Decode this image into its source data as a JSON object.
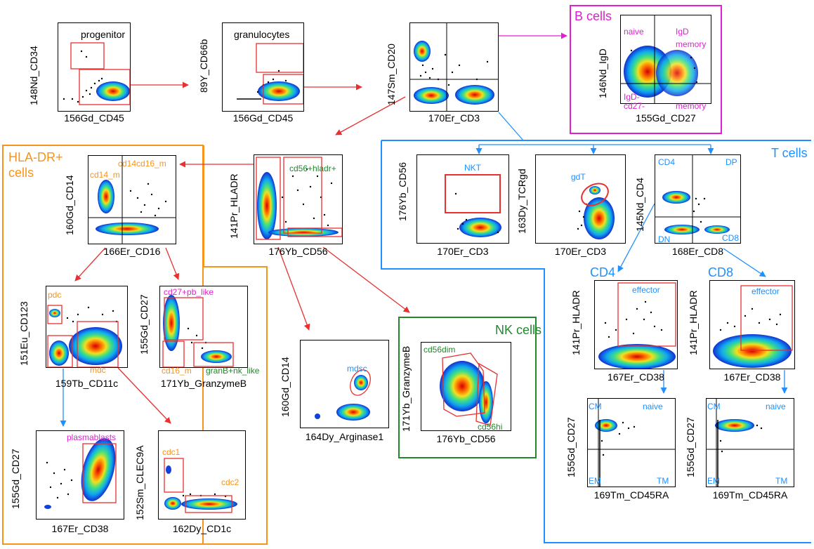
{
  "colors": {
    "orange": "#f7941d",
    "magenta": "#e020d0",
    "blue": "#1e90ff",
    "green": "#22882c",
    "red": "#e83030"
  },
  "groups": {
    "hla": {
      "title_line1": "HLA-DR+",
      "title_line2": "cells"
    },
    "bcells": {
      "title": "B cells"
    },
    "tcells": {
      "title": "T cells"
    },
    "nk": {
      "title": "NK cells"
    }
  },
  "plots": {
    "p1": {
      "y": "148Nd_CD34",
      "x": "156Gd_CD45",
      "title": "progenitor"
    },
    "p2": {
      "y": "89Y_CD66b",
      "x": "156Gd_CD45",
      "title": "granulocytes"
    },
    "p3": {
      "y": "147Sm_CD20",
      "x": "170Er_CD3"
    },
    "p4": {
      "y": "146Nd_IgD",
      "x": "155Gd_CD27",
      "gates": [
        "naive",
        "IgD",
        "memory",
        "IgD-",
        "cd27-",
        "memory"
      ]
    },
    "p5": {
      "y": "141Pr_HLADR",
      "x": "176Yb_CD56",
      "gates": [
        "cd56+hladr+"
      ]
    },
    "p6": {
      "y": "160Gd_CD14",
      "x": "166Er_CD16",
      "gates": [
        "cd14cd16_m",
        "cd14_m"
      ]
    },
    "p7": {
      "y": "176Yb_CD56",
      "x": "170Er_CD3",
      "gates": [
        "NKT"
      ]
    },
    "p8": {
      "y": "163Dy_TCRgd",
      "x": "170Er_CD3",
      "gates": [
        "gdT"
      ]
    },
    "p9": {
      "y": "145Nd_CD4",
      "x": "168Er_CD8",
      "gates": [
        "CD4",
        "DP",
        "DN",
        "CD8"
      ]
    },
    "p10": {
      "y": "151Eu_CD123",
      "x": "159Tb_CD11c",
      "gates": [
        "pdc",
        "mdc"
      ]
    },
    "p11": {
      "y": "155Gd_CD27",
      "x": "171Yb_GranzymeB",
      "gates": [
        "cd27+pb_like",
        "cd16_m",
        "granB+nk_like"
      ]
    },
    "p12": {
      "y": "160Gd_CD14",
      "x": "164Dy_Arginase1",
      "gates": [
        "mdsc"
      ]
    },
    "p13": {
      "y": "171Yb_GranzymeB",
      "x": "176Yb_CD56",
      "gates": [
        "cd56dim",
        "cd56hi"
      ]
    },
    "p14": {
      "y": "141Pr_HLADR",
      "x": "167Er_CD38",
      "heading": "CD4",
      "gates": [
        "effector"
      ]
    },
    "p15": {
      "y": "141Pr_HLADR",
      "x": "167Er_CD38",
      "heading": "CD8",
      "gates": [
        "effector"
      ]
    },
    "p16": {
      "y": "155Gd_CD27",
      "x": "167Er_CD38",
      "gates": [
        "plasmablasts"
      ]
    },
    "p17": {
      "y": "152Sm_CLEC9A",
      "x": "162Dy_CD1c",
      "gates": [
        "cdc1",
        "cdc2"
      ]
    },
    "p18": {
      "y": "155Gd_CD27",
      "x": "169Tm_CD45RA",
      "gates": [
        "CM",
        "naive",
        "EM",
        "TM"
      ]
    },
    "p19": {
      "y": "155Gd_CD27",
      "x": "169Tm_CD45RA",
      "gates": [
        "CM",
        "naive",
        "EM",
        "TM"
      ]
    }
  }
}
